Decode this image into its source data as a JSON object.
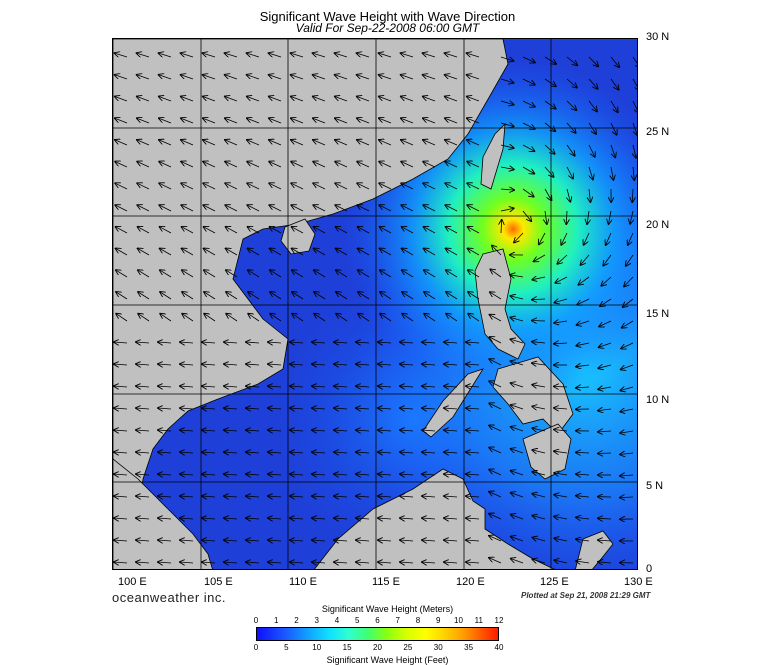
{
  "title": "Significant Wave Height with Wave Direction",
  "subtitle": "Valid For Sep-22-2008 06:00 GMT",
  "brand": "oceanweather inc.",
  "plotted": "Plotted at Sep 21, 2008 21:29 GMT",
  "map": {
    "lat_labels": [
      "30 N",
      "25 N",
      "20 N",
      "15 N",
      "10 N",
      "5 N",
      "0"
    ],
    "lon_labels": [
      "100 E",
      "105 E",
      "110 E",
      "115 E",
      "120 E",
      "125 E",
      "130 E"
    ],
    "land_color": "#c0c0c0",
    "sea_color_low": "#1a3fd8",
    "peak_location": "Luzon Strait, ~20 N 122 E"
  },
  "colorbar": {
    "meters_title": "Significant Wave Height (Meters)",
    "feet_title": "Significant Wave Height (Feet)",
    "meters_ticks": [
      "0",
      "1",
      "2",
      "3",
      "4",
      "5",
      "6",
      "7",
      "8",
      "9",
      "10",
      "11",
      "12"
    ],
    "feet_ticks": [
      "0",
      "5",
      "10",
      "15",
      "20",
      "25",
      "30",
      "35",
      "40"
    ]
  }
}
